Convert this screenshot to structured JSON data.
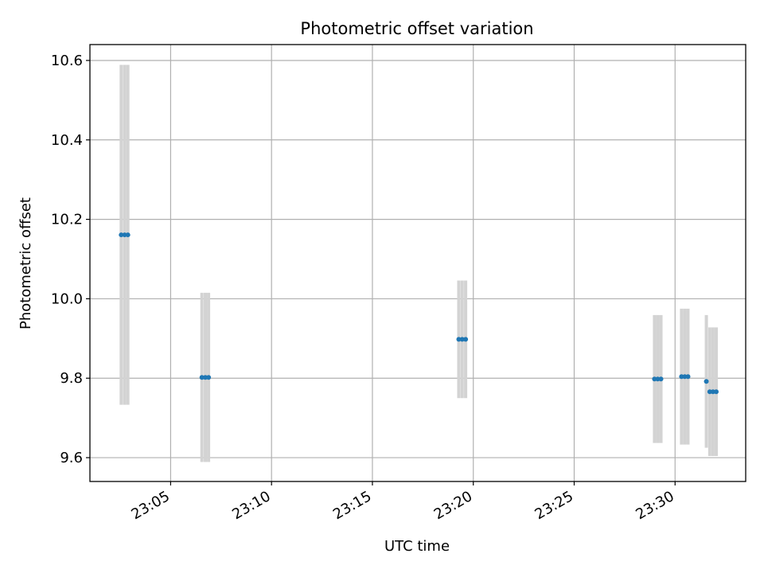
{
  "chart_data": {
    "type": "scatter",
    "title": "Photometric offset variation",
    "xlabel": "UTC time",
    "ylabel": "Photometric offset",
    "x_tick_labels": [
      "23:05",
      "23:10",
      "23:15",
      "23:20",
      "23:25",
      "23:30"
    ],
    "y_tick_labels": [
      "9.6",
      "9.8",
      "10.0",
      "10.2",
      "10.4",
      "10.6"
    ],
    "x_ticks_minutes_after_23": [
      5,
      10,
      15,
      20,
      25,
      30
    ],
    "y_ticks": [
      9.6,
      9.8,
      10.0,
      10.2,
      10.4,
      10.6
    ],
    "xlim_minutes_after_23": [
      1.0,
      33.5
    ],
    "ylim": [
      9.54,
      10.64
    ],
    "grid": true,
    "marker_color": "#1f77b4",
    "errorbar_color": "#d3d3d3",
    "series": [
      {
        "points": [
          {
            "t": 2.55,
            "y": 10.161,
            "err": 0.428
          },
          {
            "t": 2.72,
            "y": 10.161,
            "err": 0.428
          },
          {
            "t": 2.88,
            "y": 10.161,
            "err": 0.428
          },
          {
            "t": 6.55,
            "y": 9.802,
            "err": 0.213
          },
          {
            "t": 6.72,
            "y": 9.802,
            "err": 0.213
          },
          {
            "t": 6.88,
            "y": 9.802,
            "err": 0.213
          },
          {
            "t": 19.28,
            "y": 9.898,
            "err": 0.148
          },
          {
            "t": 19.45,
            "y": 9.898,
            "err": 0.148
          },
          {
            "t": 19.62,
            "y": 9.898,
            "err": 0.148
          },
          {
            "t": 28.98,
            "y": 9.798,
            "err": 0.161
          },
          {
            "t": 29.14,
            "y": 9.798,
            "err": 0.161
          },
          {
            "t": 29.3,
            "y": 9.798,
            "err": 0.161
          },
          {
            "t": 30.32,
            "y": 9.804,
            "err": 0.171
          },
          {
            "t": 30.48,
            "y": 9.804,
            "err": 0.171
          },
          {
            "t": 30.64,
            "y": 9.804,
            "err": 0.171
          },
          {
            "t": 31.55,
            "y": 9.792,
            "err": 0.167
          },
          {
            "t": 31.72,
            "y": 9.766,
            "err": 0.162
          },
          {
            "t": 31.88,
            "y": 9.766,
            "err": 0.162
          },
          {
            "t": 32.04,
            "y": 9.766,
            "err": 0.162
          }
        ]
      }
    ]
  }
}
